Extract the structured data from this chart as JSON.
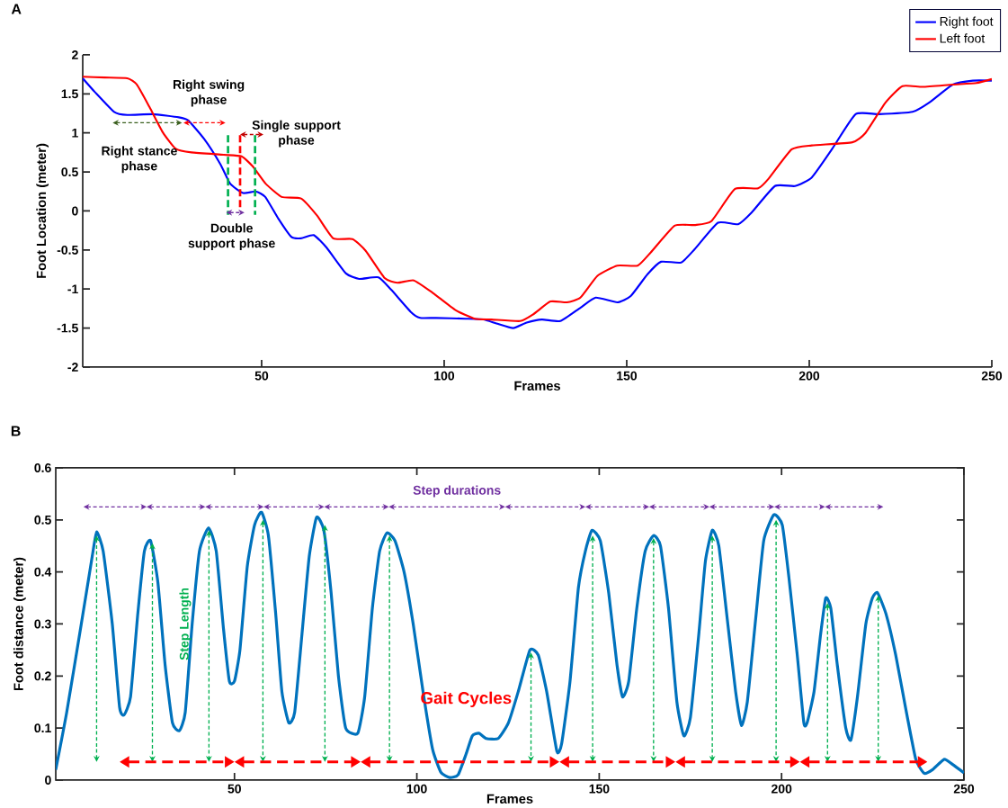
{
  "chart_data": [
    {
      "type": "line",
      "title": "A",
      "xlabel": "Frames",
      "ylabel": "Foot Location (meter)",
      "xlim": [
        1,
        250
      ],
      "ylim": [
        -2,
        2
      ],
      "xticks": [
        50,
        100,
        150,
        200,
        250
      ],
      "yticks": [
        -2,
        -1.5,
        -1,
        -0.5,
        0,
        0.5,
        1,
        1.5,
        2
      ],
      "legend": "top right",
      "series": [
        {
          "name": "Right foot",
          "color": "#0000ff",
          "x": [
            1,
            4.4,
            9.6,
            13.2,
            20.2,
            27.3,
            29.9,
            34.3,
            38.7,
            41.4,
            44.9,
            48.4,
            51,
            54.6,
            58.1,
            60.8,
            64.3,
            67.8,
            73.1,
            76.7,
            82,
            85.5,
            90.8,
            93.4,
            97.8,
            105.8,
            110.7,
            114.3,
            118.9,
            122.6,
            126.8,
            131.8,
            137.3,
            141.5,
            147.4,
            151.1,
            155.7,
            159.4,
            164.9,
            168.6,
            175,
            180.5,
            184.2,
            190.6,
            196.1,
            200.7,
            206.2,
            212.7,
            219.1,
            228.3,
            232.9,
            239.3,
            244.8,
            250
          ],
          "values": [
            1.7,
            1.52,
            1.27,
            1.23,
            1.24,
            1.2,
            1.16,
            0.92,
            0.6,
            0.35,
            0.23,
            0.25,
            0.18,
            -0.1,
            -0.33,
            -0.35,
            -0.31,
            -0.47,
            -0.8,
            -0.87,
            -0.85,
            -1.01,
            -1.29,
            -1.37,
            -1.37,
            -1.38,
            -1.39,
            -1.44,
            -1.5,
            -1.43,
            -1.39,
            -1.41,
            -1.24,
            -1.11,
            -1.17,
            -1.09,
            -0.81,
            -0.65,
            -0.66,
            -0.49,
            -0.15,
            -0.17,
            -0.02,
            0.32,
            0.32,
            0.43,
            0.79,
            1.24,
            1.24,
            1.27,
            1.39,
            1.62,
            1.67,
            1.67
          ]
        },
        {
          "name": "Left foot",
          "color": "#ff0000",
          "x": [
            1,
            7,
            13.2,
            15.8,
            19.3,
            22.9,
            26.4,
            30.8,
            39.6,
            44.5,
            47.6,
            51.1,
            55.5,
            60.8,
            65.2,
            69.6,
            74.9,
            78.5,
            83.7,
            87.2,
            91.7,
            96.9,
            103.1,
            108.4,
            113,
            120.8,
            124.5,
            129.1,
            133.6,
            137.3,
            142,
            147.4,
            153,
            156.6,
            163.1,
            168.6,
            173.2,
            179.6,
            186,
            188.8,
            195.2,
            200.7,
            211.8,
            215.4,
            220.9,
            225.5,
            231.1,
            239.3,
            245.8,
            250
          ],
          "values": [
            1.72,
            1.71,
            1.7,
            1.62,
            1.33,
            1.01,
            0.8,
            0.75,
            0.72,
            0.7,
            0.57,
            0.35,
            0.18,
            0.16,
            -0.06,
            -0.35,
            -0.36,
            -0.51,
            -0.86,
            -0.92,
            -0.89,
            -1.05,
            -1.27,
            -1.38,
            -1.39,
            -1.41,
            -1.32,
            -1.16,
            -1.17,
            -1.11,
            -0.83,
            -0.7,
            -0.7,
            -0.53,
            -0.19,
            -0.18,
            -0.13,
            0.28,
            0.29,
            0.41,
            0.79,
            0.84,
            0.88,
            1.0,
            1.39,
            1.6,
            1.59,
            1.62,
            1.64,
            1.69
          ]
        }
      ],
      "annotations": [
        "Right swing phase",
        "Right stance phase",
        "Single support phase",
        "Double support phase"
      ]
    },
    {
      "type": "line",
      "title": "B",
      "xlabel": "Frames",
      "ylabel": "Foot distance (meter)",
      "xlim": [
        1,
        250
      ],
      "ylim": [
        0,
        0.6
      ],
      "xticks": [
        50,
        100,
        150,
        200,
        250
      ],
      "yticks": [
        0,
        0.1,
        0.2,
        0.3,
        0.4,
        0.5,
        0.6
      ],
      "series": [
        {
          "color": "#0072bd",
          "x": [
            1,
            4,
            8,
            11,
            12.2,
            14,
            16.5,
            18.5,
            19.7,
            21.5,
            23.5,
            25.3,
            27,
            29,
            31,
            33,
            34.9,
            36.5,
            38.4,
            40.4,
            42.9,
            45,
            47,
            48.6,
            50,
            51.5,
            53.5,
            55.5,
            57.4,
            59.3,
            61.3,
            63,
            64.9,
            66.5,
            68.5,
            70.5,
            72.5,
            74.5,
            76.5,
            78.5,
            80.5,
            83.8,
            85.7,
            87.8,
            89.8,
            91.8,
            94,
            96.5,
            99,
            101.7,
            104.3,
            106.6,
            109,
            111.3,
            113.5,
            115.2,
            117,
            119,
            122.3,
            125.1,
            127.8,
            131,
            133.3,
            135.6,
            138.4,
            139.7,
            142,
            144.3,
            146.2,
            148,
            150.3,
            152.6,
            154.9,
            156.4,
            158.1,
            160.3,
            162.6,
            164.9,
            166.8,
            169,
            171.3,
            173.2,
            175,
            177.3,
            179.1,
            181,
            182.8,
            185.1,
            187.4,
            189,
            190.6,
            192.9,
            195.1,
            197.9,
            200.2,
            202,
            204.3,
            206.1,
            207,
            208.9,
            210.7,
            212.1,
            213.5,
            215.3,
            217.6,
            219,
            220.8,
            223.1,
            224.9,
            226.3,
            228.6,
            231.3,
            234.1,
            236.8,
            239.1,
            241.4,
            244.6,
            246.9,
            250
          ],
          "values": [
            0.02,
            0.13,
            0.3,
            0.43,
            0.477,
            0.44,
            0.3,
            0.14,
            0.125,
            0.16,
            0.32,
            0.44,
            0.46,
            0.38,
            0.22,
            0.11,
            0.095,
            0.13,
            0.3,
            0.44,
            0.485,
            0.44,
            0.29,
            0.19,
            0.19,
            0.25,
            0.41,
            0.49,
            0.515,
            0.47,
            0.32,
            0.17,
            0.11,
            0.13,
            0.28,
            0.43,
            0.505,
            0.48,
            0.36,
            0.2,
            0.1,
            0.09,
            0.16,
            0.33,
            0.44,
            0.475,
            0.46,
            0.4,
            0.3,
            0.17,
            0.06,
            0.015,
            0.005,
            0.01,
            0.05,
            0.085,
            0.09,
            0.08,
            0.08,
            0.11,
            0.17,
            0.25,
            0.24,
            0.17,
            0.055,
            0.07,
            0.19,
            0.37,
            0.44,
            0.48,
            0.46,
            0.36,
            0.22,
            0.16,
            0.19,
            0.33,
            0.44,
            0.47,
            0.45,
            0.33,
            0.15,
            0.085,
            0.12,
            0.28,
            0.42,
            0.48,
            0.45,
            0.31,
            0.17,
            0.105,
            0.15,
            0.31,
            0.46,
            0.51,
            0.49,
            0.39,
            0.24,
            0.11,
            0.11,
            0.17,
            0.28,
            0.35,
            0.33,
            0.22,
            0.1,
            0.077,
            0.16,
            0.3,
            0.35,
            0.36,
            0.32,
            0.24,
            0.135,
            0.04,
            0.013,
            0.02,
            0.04,
            0.03,
            0.014
          ]
        }
      ],
      "annotations": [
        "Step durations",
        "Step Length",
        "Gait Cycles"
      ]
    }
  ]
}
